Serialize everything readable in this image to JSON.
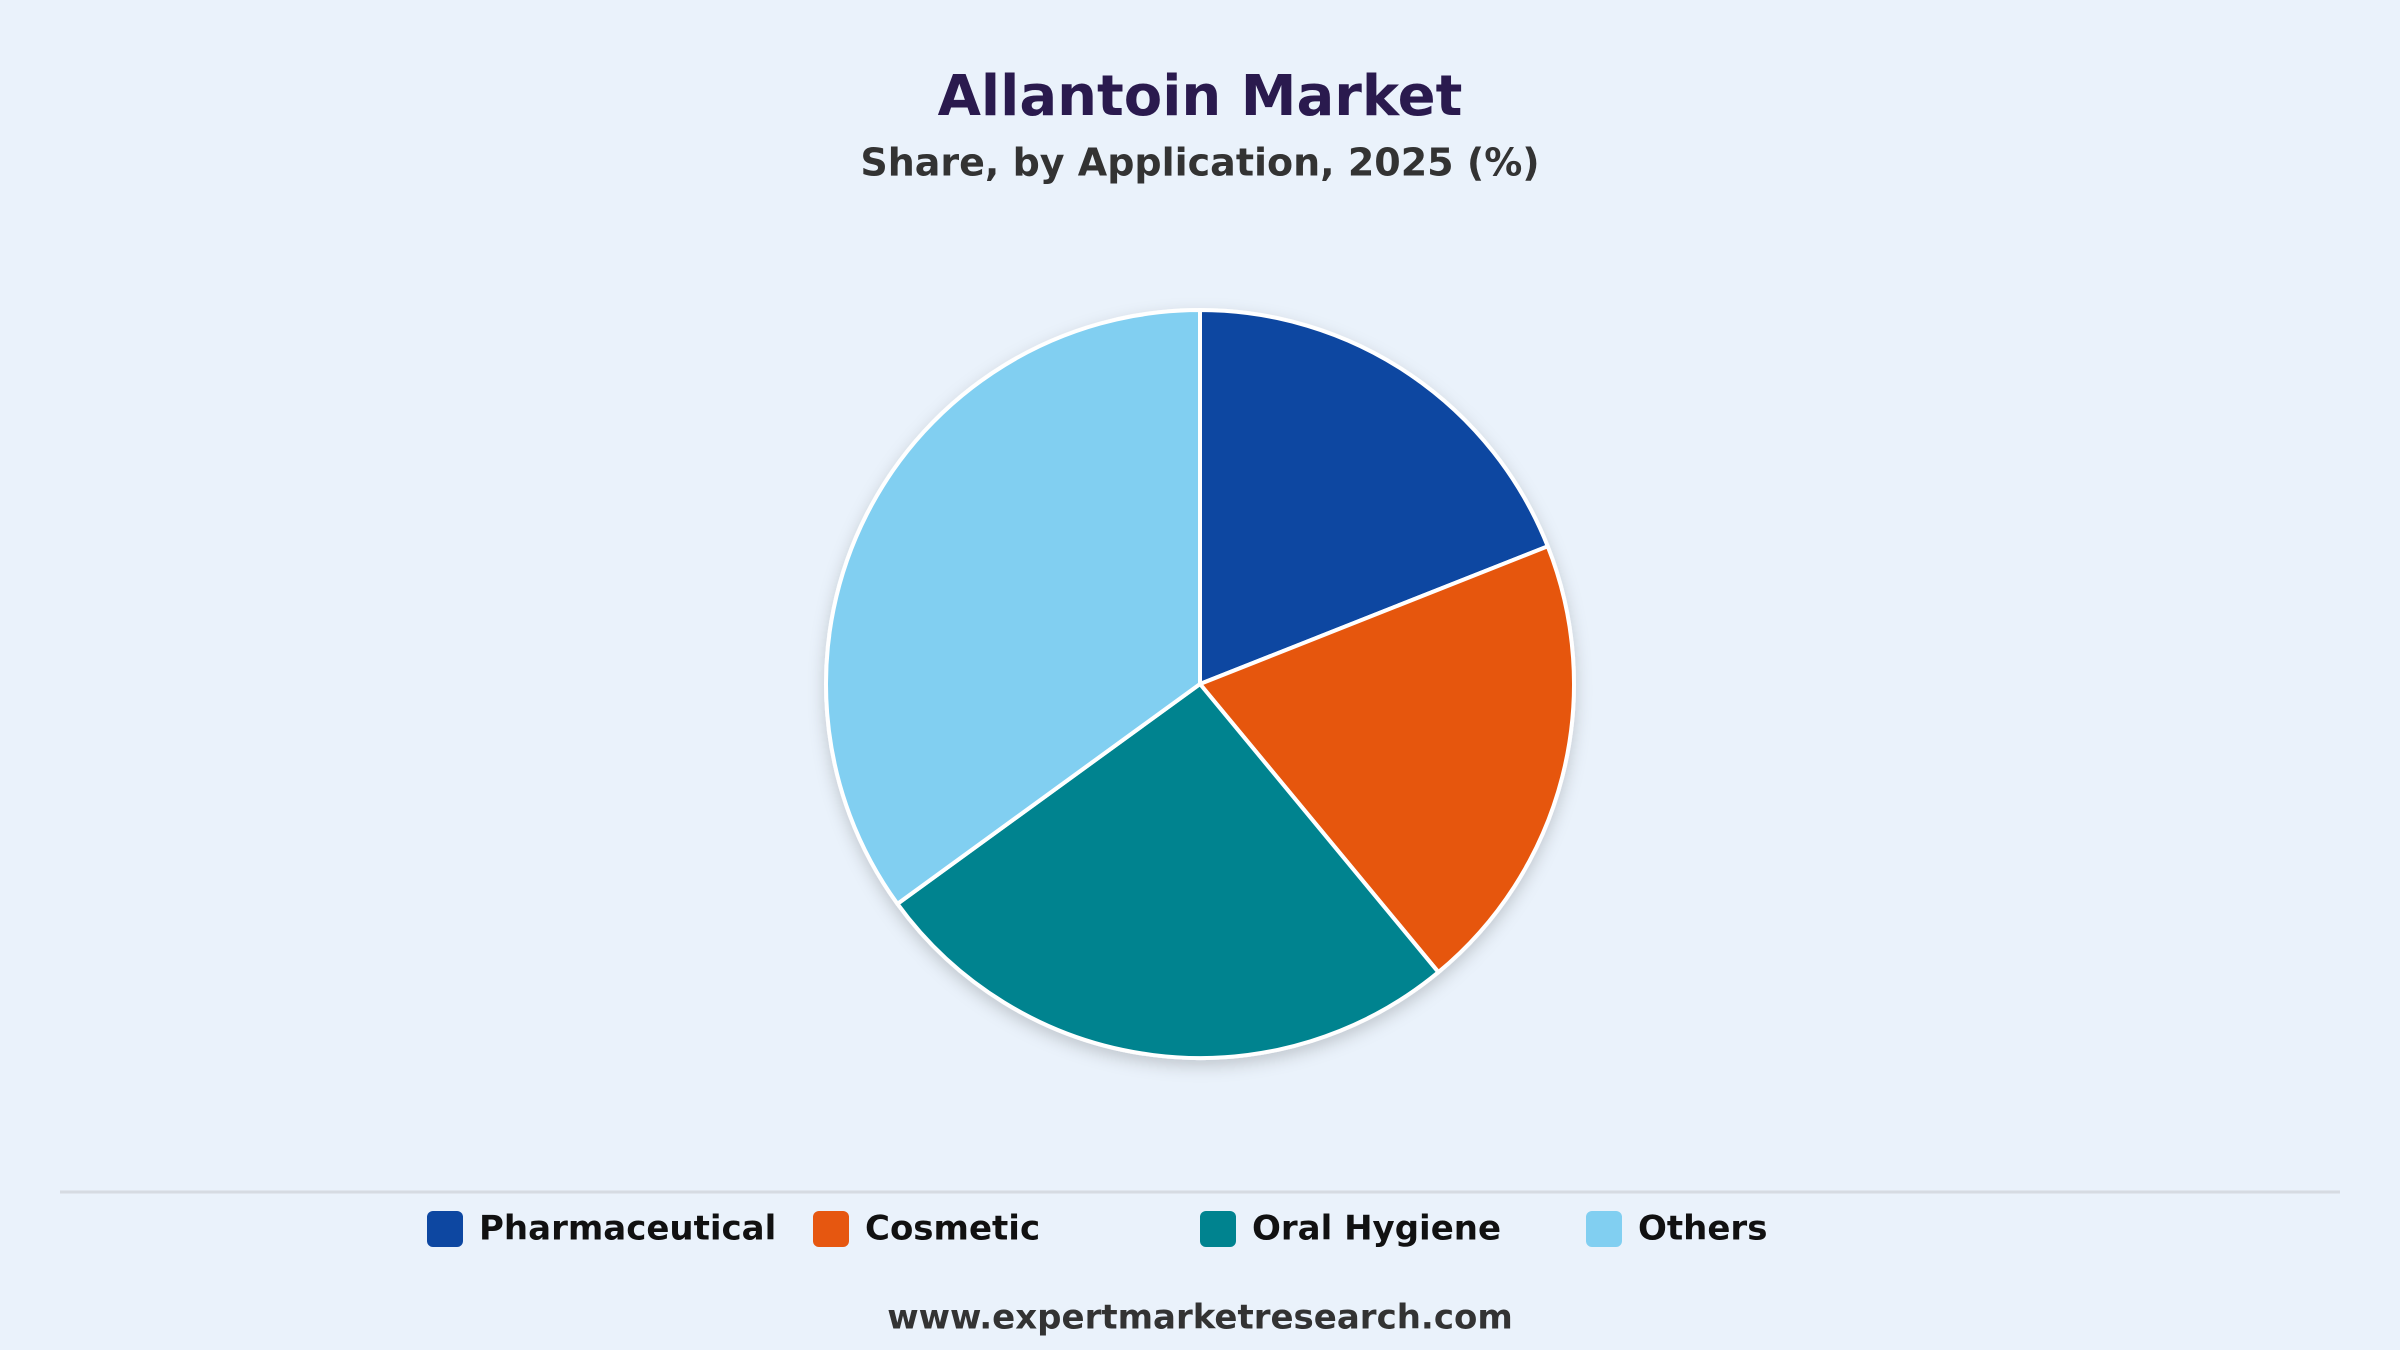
{
  "chart_data": {
    "type": "pie",
    "title": "Allantoin Market",
    "subtitle": "Share, by Application, 2025 (%)",
    "categories": [
      "Pharmaceutical",
      "Cosmetic",
      "Oral Hygiene",
      "Others"
    ],
    "values": [
      19,
      20,
      26,
      35
    ],
    "colors": [
      "#0d47a1",
      "#e65710",
      "#00838f",
      "#81cff1"
    ],
    "source": "www.expertmarketresearch.com"
  }
}
